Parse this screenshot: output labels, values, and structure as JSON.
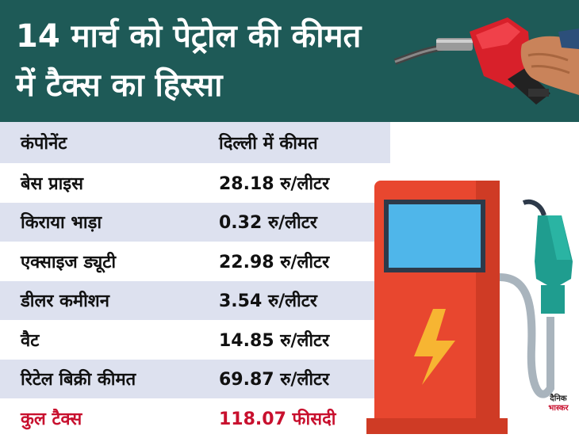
{
  "header": {
    "title_line1": "14 मार्च को पेट्रोल की कीमत",
    "title_line2": "में टैक्स का हिस्सा"
  },
  "table": {
    "columns": [
      "कंपोनेंट",
      "दिल्ली में कीमत"
    ],
    "rows": [
      {
        "component": "बेस प्राइस",
        "price": "28.18 रु/लीटर"
      },
      {
        "component": "किराया भाड़ा",
        "price": "0.32 रु/लीटर"
      },
      {
        "component": "एक्साइज ड्यूटी",
        "price": "22.98 रु/लीटर"
      },
      {
        "component": "डीलर कमीशन",
        "price": "3.54 रु/लीटर"
      },
      {
        "component": "वैट",
        "price": "14.85 रु/लीटर"
      },
      {
        "component": "रिटेल बिक्री कीमत",
        "price": "69.87 रु/लीटर"
      }
    ],
    "total": {
      "component": "कुल टैक्स",
      "price": "118.07 फीसदी"
    }
  },
  "logo": {
    "line1": "दैनिक",
    "line2": "भास्कर"
  },
  "colors": {
    "header_bg": "#1e5a57",
    "row_shade": "#dde1ef",
    "total_red": "#c8102e",
    "pump_red": "#e8472f",
    "nozzle_teal": "#2aa59a"
  },
  "icons": [
    "fuel-nozzle-icon",
    "fuel-pump-icon",
    "lightning-icon"
  ]
}
